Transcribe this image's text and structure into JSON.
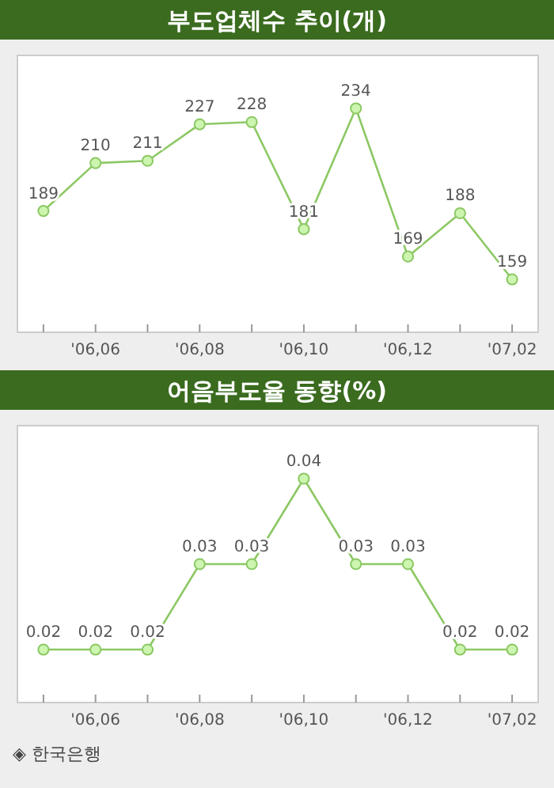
{
  "chart_data": [
    {
      "type": "line",
      "title": "부도업체수 추이(개)",
      "categories": [
        null,
        "'06,06",
        null,
        "'06,08",
        null,
        "'06,10",
        null,
        "'06,12",
        null,
        "'07,02"
      ],
      "series": [
        {
          "color": "#8cc864",
          "values": [
            189,
            210,
            211,
            227,
            228,
            181,
            234,
            169,
            188,
            159
          ]
        }
      ],
      "data_labels": true,
      "marker": "circle",
      "line_style": "solid",
      "grid": false
    },
    {
      "type": "line",
      "title": "어음부도율 동향(%)",
      "categories": [
        null,
        "'06,06",
        null,
        "'06,08",
        null,
        "'06,10",
        null,
        "'06,12",
        null,
        "'07,02"
      ],
      "series": [
        {
          "color": "#8cc864",
          "values": [
            0.02,
            0.02,
            0.02,
            0.03,
            0.03,
            0.04,
            0.03,
            0.03,
            0.02,
            0.02
          ]
        }
      ],
      "data_labels": true,
      "marker": "circle",
      "line_style": "solid",
      "grid": false,
      "annotations": [
        "◈ 한국은행"
      ]
    }
  ]
}
